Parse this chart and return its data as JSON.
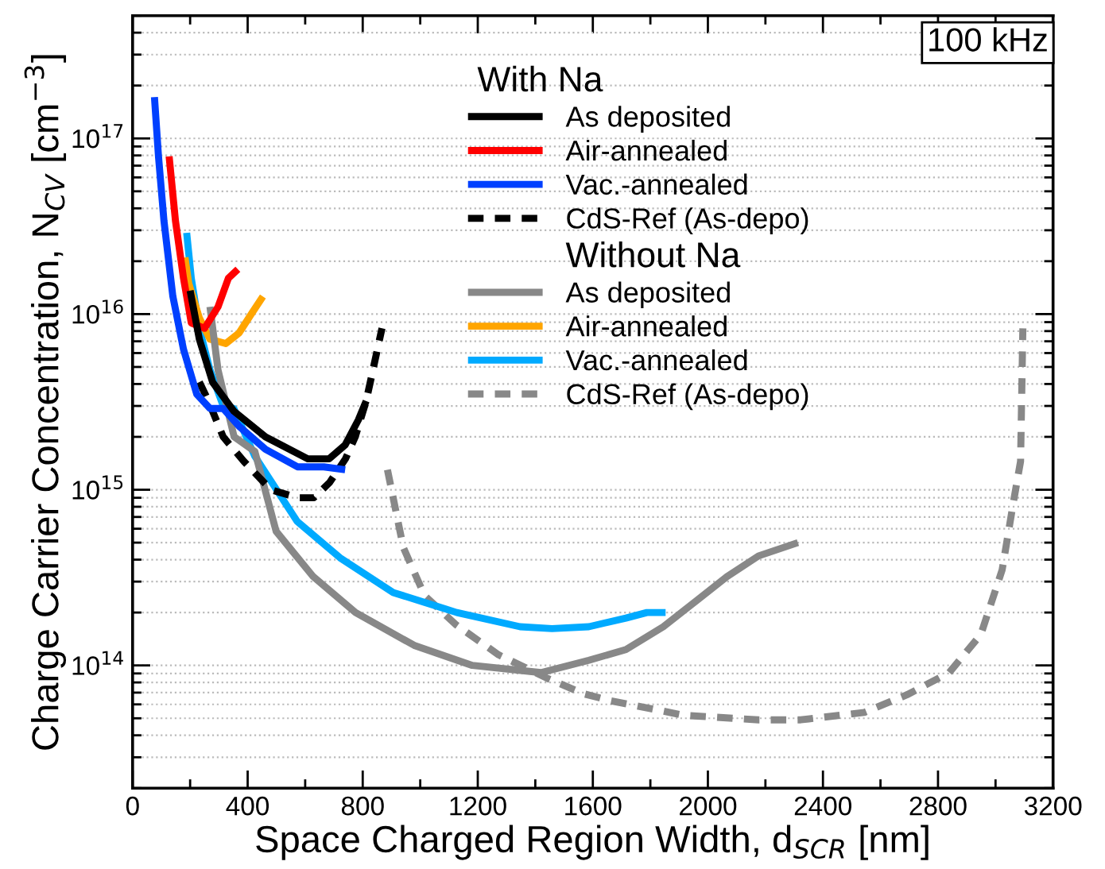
{
  "chart_data": {
    "type": "line",
    "xlabel": "Space Charged Region Width, d$_{SCR}$ [nm]",
    "ylabel": "Charge Carrier Concentration, N$_{CV}$ [cm$^{−3}$]",
    "annotations": [
      "With Na",
      "Without Na",
      "100 kHz"
    ],
    "log": "y",
    "grid": "y",
    "legend": "top",
    "xlim": [
      0,
      3200
    ],
    "xticks": [
      0,
      400,
      800,
      1200,
      1600,
      2000,
      2400,
      2800,
      3200
    ],
    "ylim": [
      20000000000000.0,
      5e+17
    ],
    "yticks": [
      {
        "value": 100000000000000.0,
        "label": "10$^{14}$"
      },
      {
        "value": 1000000000000000.0,
        "label": "10$^{15}$"
      },
      {
        "value": 1e+16,
        "label": "10$^{16}$"
      },
      {
        "value": 1e+17,
        "label": "10$^{17}$"
      }
    ],
    "series": [
      {
        "name": "As deposited",
        "color": "#000000",
        "line_style": "solid",
        "x": [
          200,
          232,
          278,
          352,
          462,
          609,
          683,
          739,
          785,
          812
        ],
        "values": [
          1.36e+16,
          7200000000000000.0,
          4100000000000000.0,
          2800000000000000.0,
          2000000000000000.0,
          1500000000000000.0,
          1500000000000000.0,
          1800000000000000.0,
          2500000000000000.0,
          3200000000000000.0
        ]
      },
      {
        "name": "Air-annealed",
        "color": "#ff0000",
        "line_style": "solid",
        "x": [
          127,
          149,
          177,
          204,
          250,
          297,
          333,
          366
        ],
        "values": [
          7.9e+16,
          3.4e+16,
          1.6e+16,
          8900000000000000.0,
          8300000000000000.0,
          1.1e+16,
          1.6e+16,
          1.8e+16
        ]
      },
      {
        "name": "Vac.-annealed",
        "color": "#0040ff",
        "line_style": "solid",
        "x": [
          76,
          90,
          109,
          140,
          177,
          223,
          269,
          315,
          370,
          462,
          573,
          665,
          739
        ],
        "values": [
          1.72e+17,
          7.9e+16,
          3.4e+16,
          1.26e+16,
          6300000000000000.0,
          3500000000000000.0,
          2900000000000000.0,
          2900000000000000.0,
          2300000000000000.0,
          1700000000000000.0,
          1350000000000000.0,
          1350000000000000.0,
          1300000000000000.0
        ]
      },
      {
        "name": "CdS-Ref (As-depo)",
        "color": "#000000",
        "line_style": "dashed",
        "x": [
          232,
          260,
          315,
          387,
          481,
          575,
          630,
          685,
          740,
          774,
          812,
          867
        ],
        "values": [
          4100000000000000.0,
          3300000000000000.0,
          2000000000000000.0,
          1450000000000000.0,
          1000000000000000.0,
          900000000000000.0,
          900000000000000.0,
          1100000000000000.0,
          1500000000000000.0,
          2000000000000000.0,
          3200000000000000.0,
          8300000000000000.0
        ]
      },
      {
        "name": "As deposited",
        "color": "#888888",
        "line_style": "solid",
        "x": [
          269,
          297,
          353,
          425,
          499,
          628,
          775,
          979,
          1181,
          1420,
          1586,
          1715,
          1845,
          1955,
          2066,
          2176,
          2313
        ],
        "values": [
          1.1e+16,
          4800000000000000.0,
          2000000000000000.0,
          1650000000000000.0,
          580000000000000.0,
          320000000000000.0,
          200000000000000.0,
          130000000000000.0,
          100000000000000.0,
          91000000000000.0,
          107000000000000.0,
          123000000000000.0,
          166000000000000.0,
          230000000000000.0,
          320000000000000.0,
          420000000000000.0,
          500000000000000.0
        ]
      },
      {
        "name": "Air-annealed",
        "color": "#ffa500",
        "line_style": "solid",
        "x": [
          182,
          195,
          232,
          269,
          324,
          370,
          416,
          453
        ],
        "values": [
          2.1e+16,
          1.5e+16,
          9500000000000000.0,
          7200000000000000.0,
          6800000000000000.0,
          7800000000000000.0,
          1.02e+16,
          1.26e+16
        ]
      },
      {
        "name": "Vac.-annealed",
        "color": "#00aaff",
        "line_style": "solid",
        "x": [
          188,
          204,
          232,
          269,
          315,
          352,
          425,
          572,
          721,
          906,
          1127,
          1347,
          1458,
          1586,
          1715,
          1788,
          1853
        ],
        "values": [
          2.9e+16,
          1.6e+16,
          8300000000000000.0,
          4800000000000000.0,
          3000000000000000.0,
          2900000000000000.0,
          1550000000000000.0,
          660000000000000.0,
          410000000000000.0,
          260000000000000.0,
          200000000000000.0,
          166000000000000.0,
          162000000000000.0,
          166000000000000.0,
          186000000000000.0,
          200000000000000.0,
          200000000000000.0
        ]
      },
      {
        "name": "CdS-Ref (As-depo)",
        "color": "#888888",
        "line_style": "dashed",
        "x": [
          886,
          941,
          1015,
          1125,
          1272,
          1438,
          1568,
          1660,
          1917,
          2176,
          2323,
          2544,
          2692,
          2839,
          2949,
          3023,
          3060,
          3087,
          3095
        ],
        "values": [
          1300000000000000.0,
          470000000000000.0,
          250000000000000.0,
          170000000000000.0,
          115000000000000.0,
          85000000000000.0,
          69000000000000.0,
          63000000000000.0,
          52000000000000.0,
          49000000000000.0,
          49000000000000.0,
          54000000000000.0,
          68000000000000.0,
          91000000000000.0,
          150000000000000.0,
          350000000000000.0,
          810000000000000.0,
          1450000000000000.0,
          8300000000000000.0
        ]
      }
    ]
  }
}
